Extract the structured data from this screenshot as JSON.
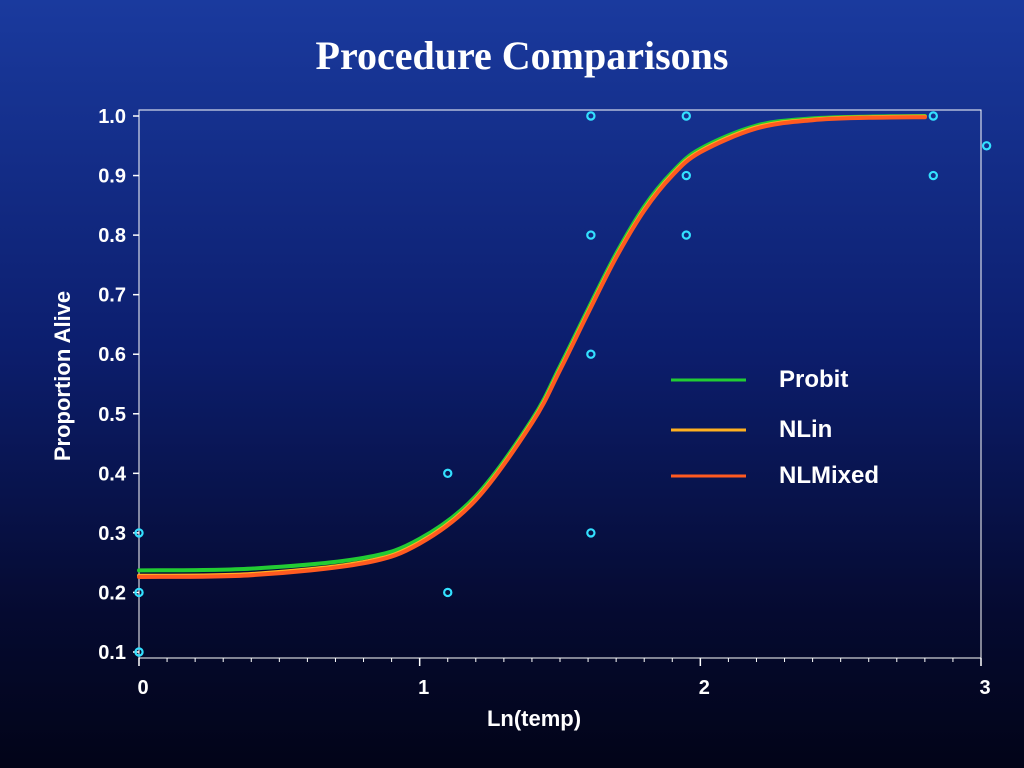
{
  "slide": {
    "title": "Procedure Comparisons"
  },
  "chart_data": {
    "type": "scatter",
    "title": "Procedure Comparisons",
    "xlabel": "Ln(temp)",
    "ylabel": "Proportion Alive",
    "xlim": [
      0,
      3
    ],
    "ylim": [
      0.1,
      1.0
    ],
    "x_ticks": [
      0,
      1,
      2,
      3
    ],
    "x_tick_labels": [
      "0",
      "1",
      "2",
      "3"
    ],
    "y_ticks": [
      0.1,
      0.2,
      0.3,
      0.4,
      0.5,
      0.6,
      0.7,
      0.8,
      0.9,
      1.0
    ],
    "y_tick_labels": [
      "0.1",
      "0.2",
      "0.3",
      "0.4",
      "0.5",
      "0.6",
      "0.7",
      "0.8",
      "0.9",
      "1.0"
    ],
    "grid": false,
    "legend_position": "right",
    "points": {
      "color": "#33e0ff",
      "data": [
        {
          "x": 0.0,
          "y": 0.1
        },
        {
          "x": 0.0,
          "y": 0.2
        },
        {
          "x": 0.0,
          "y": 0.3
        },
        {
          "x": 1.1,
          "y": 0.2
        },
        {
          "x": 1.1,
          "y": 0.4
        },
        {
          "x": 1.61,
          "y": 0.3
        },
        {
          "x": 1.61,
          "y": 0.6
        },
        {
          "x": 1.61,
          "y": 0.8
        },
        {
          "x": 1.61,
          "y": 1.0
        },
        {
          "x": 1.95,
          "y": 0.8
        },
        {
          "x": 1.95,
          "y": 0.9
        },
        {
          "x": 1.95,
          "y": 1.0
        },
        {
          "x": 2.83,
          "y": 0.9
        },
        {
          "x": 2.83,
          "y": 1.0
        },
        {
          "x": 3.02,
          "y": 0.95
        }
      ]
    },
    "series": [
      {
        "name": "Probit",
        "color": "#22cc33",
        "x": [
          0.0,
          0.4,
          0.8,
          1.0,
          1.2,
          1.4,
          1.5,
          1.6,
          1.7,
          1.8,
          1.9,
          2.0,
          2.2,
          2.4,
          2.6,
          2.8
        ],
        "y": [
          0.237,
          0.24,
          0.258,
          0.29,
          0.362,
          0.49,
          0.58,
          0.676,
          0.769,
          0.848,
          0.906,
          0.945,
          0.984,
          0.996,
          0.999,
          1.0
        ]
      },
      {
        "name": "NLin",
        "color": "#ffb020",
        "x": [
          0.0,
          0.4,
          0.8,
          1.0,
          1.2,
          1.4,
          1.5,
          1.6,
          1.7,
          1.8,
          1.9,
          2.0,
          2.2,
          2.4,
          2.6,
          2.8
        ],
        "y": [
          0.228,
          0.231,
          0.251,
          0.284,
          0.357,
          0.486,
          0.575,
          0.671,
          0.764,
          0.843,
          0.902,
          0.941,
          0.981,
          0.994,
          0.998,
          0.999
        ]
      },
      {
        "name": "NLMixed",
        "color": "#ff5a20",
        "x": [
          0.0,
          0.4,
          0.8,
          1.0,
          1.2,
          1.4,
          1.5,
          1.6,
          1.7,
          1.8,
          1.9,
          2.0,
          2.2,
          2.4,
          2.6,
          2.8
        ],
        "y": [
          0.226,
          0.229,
          0.249,
          0.282,
          0.355,
          0.484,
          0.573,
          0.669,
          0.762,
          0.841,
          0.9,
          0.939,
          0.979,
          0.993,
          0.997,
          0.998
        ]
      }
    ]
  }
}
